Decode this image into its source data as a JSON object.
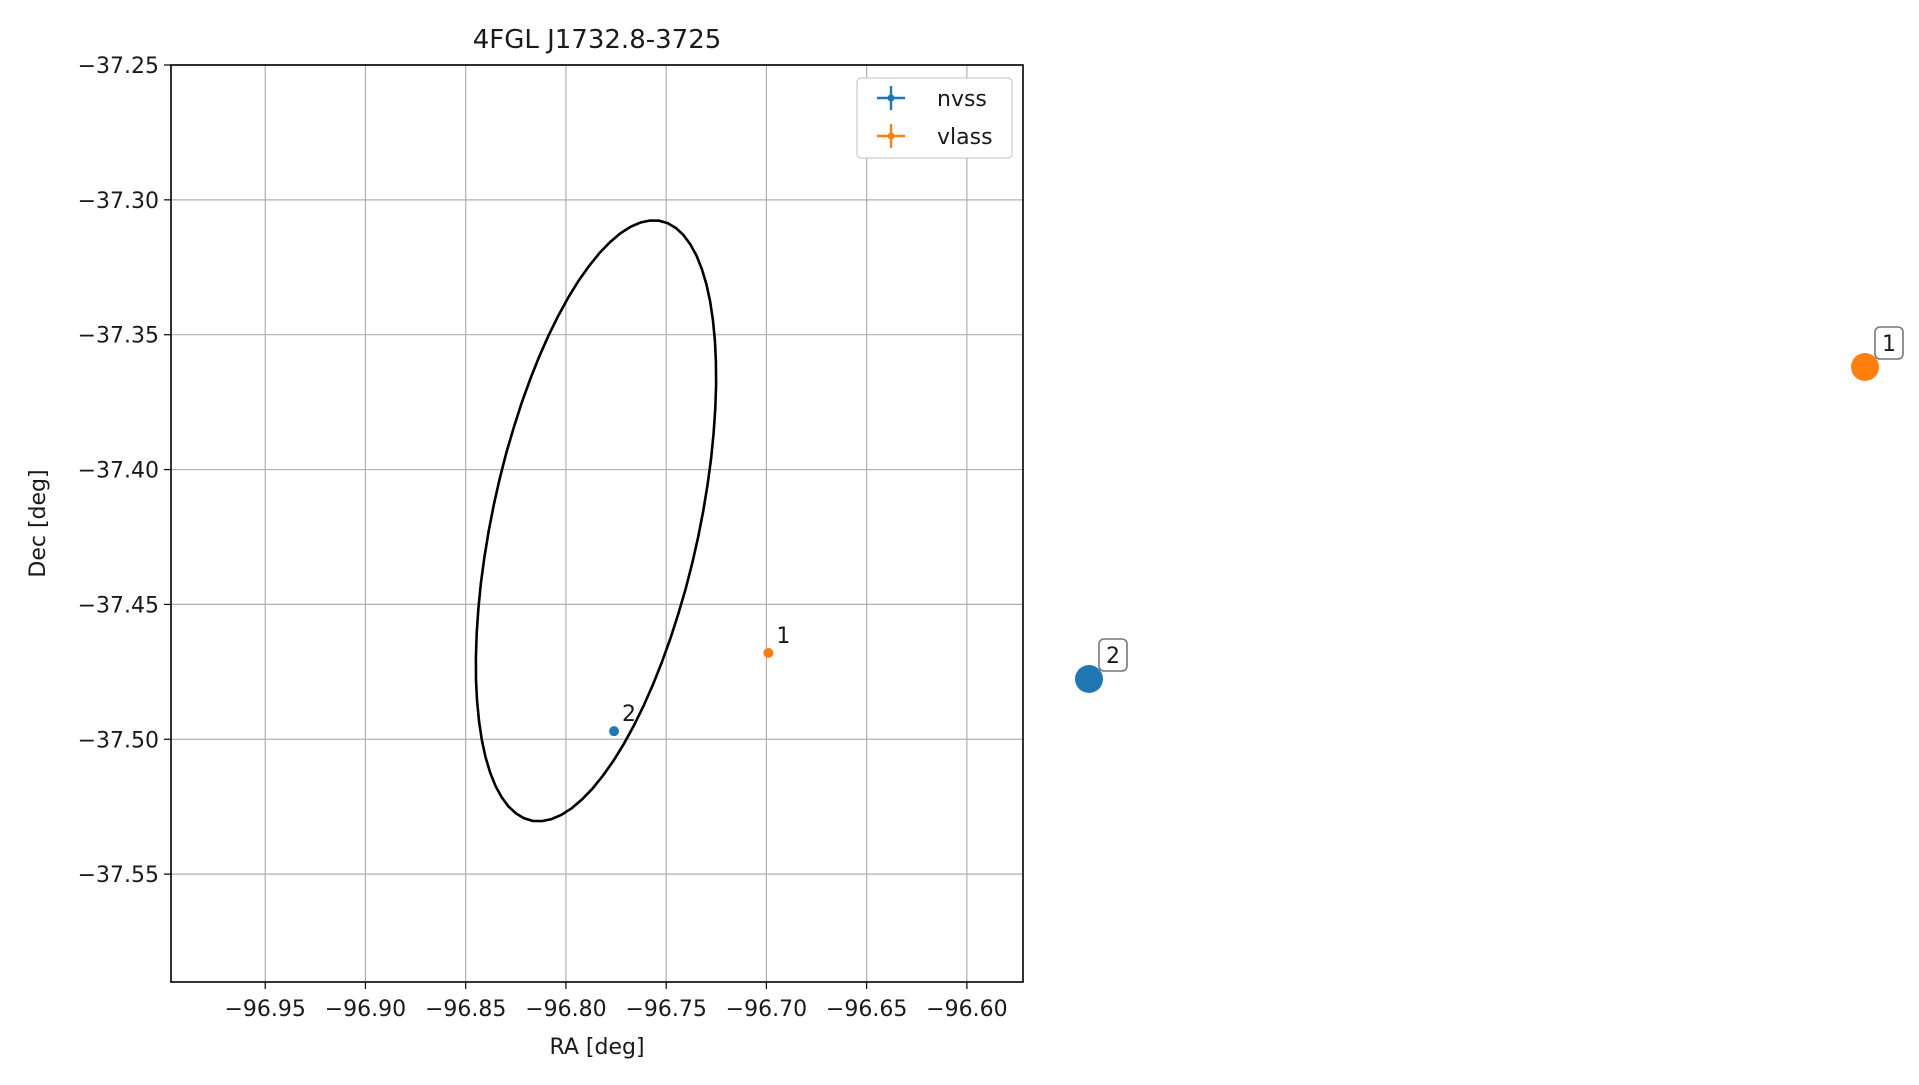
{
  "chart_data": {
    "type": "scatter",
    "title": "4FGL J1732.8-3725",
    "xlabel": "RA [deg]",
    "ylabel": "Dec [deg]",
    "xlim": [
      -96.997,
      -96.572
    ],
    "ylim": [
      -37.59,
      -37.25
    ],
    "x_ticks": [
      -96.95,
      -96.9,
      -96.85,
      -96.8,
      -96.75,
      -96.7,
      -96.65,
      -96.6
    ],
    "x_tick_labels": [
      "−96.95",
      "−96.90",
      "−96.85",
      "−96.80",
      "−96.75",
      "−96.70",
      "−96.65",
      "−96.60"
    ],
    "y_ticks": [
      -37.25,
      -37.3,
      -37.35,
      -37.4,
      -37.45,
      -37.5,
      -37.55
    ],
    "y_tick_labels": [
      "−37.25",
      "−37.30",
      "−37.35",
      "−37.40",
      "−37.45",
      "−37.50",
      "−37.55"
    ],
    "grid": true,
    "legend_position": "top-right",
    "series": [
      {
        "name": "nvss",
        "color": "#1f77b4",
        "points": [
          {
            "x": -96.776,
            "y": -37.497,
            "label": "2"
          }
        ]
      },
      {
        "name": "vlass",
        "color": "#ff7f0e",
        "points": [
          {
            "x": -96.699,
            "y": -37.468,
            "label": "1"
          }
        ]
      }
    ],
    "ellipse": {
      "center": [
        -96.785,
        -37.419
      ],
      "semi_major": 0.116,
      "semi_minor": 0.0505,
      "angle_deg": 72,
      "color": "#000000"
    },
    "side_markers": [
      {
        "label": "2",
        "color": "#1f77b4"
      },
      {
        "label": "1",
        "color": "#ff7f0e"
      }
    ]
  }
}
